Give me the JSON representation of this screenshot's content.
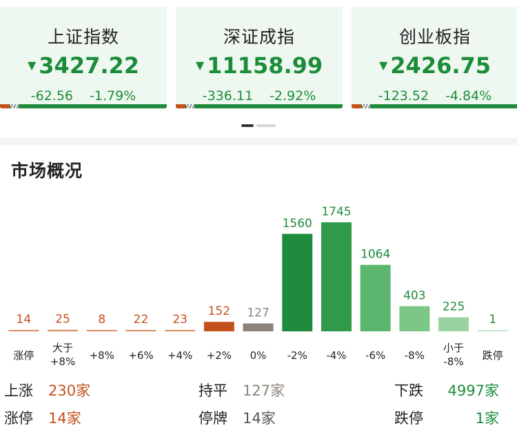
{
  "indices": [
    {
      "name": "上证指数",
      "value": "3427.22",
      "change": "-62.56",
      "pct": "-1.79%",
      "arrow": "▼"
    },
    {
      "name": "深证成指",
      "value": "11158.99",
      "change": "-336.11",
      "pct": "-2.92%",
      "arrow": "▼"
    },
    {
      "name": "创业板指",
      "value": "2426.75",
      "change": "-123.52",
      "pct": "-4.84%",
      "arrow": "▼"
    }
  ],
  "colors": {
    "up": "#c4511c",
    "down": "#1c8c3a",
    "flat": "#8c847c",
    "text": "#222222",
    "muted": "#777777"
  },
  "section_title": "市场概况",
  "chart_data": {
    "type": "bar",
    "categories": [
      "涨停",
      "大于\n+8%",
      "+8%",
      "+6%",
      "+4%",
      "+2%",
      "0%",
      "-2%",
      "-4%",
      "-6%",
      "-8%",
      "小于\n-8%",
      "跌停"
    ],
    "values": [
      14,
      25,
      8,
      22,
      23,
      152,
      127,
      1560,
      1745,
      1064,
      403,
      225,
      1
    ],
    "bar_colors": [
      "#d98c5f",
      "#d98c5f",
      "#d98c5f",
      "#d98c5f",
      "#d98c5f",
      "#c4511c",
      "#8c847c",
      "#1e8c3c",
      "#2f9a4a",
      "#5cb66d",
      "#7cc687",
      "#9ad3a2",
      "#bfe3c4"
    ],
    "label_colors": [
      "#c4511c",
      "#c4511c",
      "#c4511c",
      "#c4511c",
      "#c4511c",
      "#c4511c",
      "#8c847c",
      "#1c8c3a",
      "#1c8c3a",
      "#1c8c3a",
      "#1c8c3a",
      "#1c8c3a",
      "#1c8c3a"
    ],
    "title": "",
    "xlabel": "",
    "ylabel": ""
  },
  "stats": {
    "up_label": "上涨",
    "up_value": "230家",
    "limit_up_label": "涨停",
    "limit_up_value": "14家",
    "flat_label": "持平",
    "flat_value": "127家",
    "suspended_label": "停牌",
    "suspended_value": "14家",
    "down_label": "下跌",
    "down_value": "4997家",
    "limit_down_label": "跌停",
    "limit_down_value": "1家"
  }
}
